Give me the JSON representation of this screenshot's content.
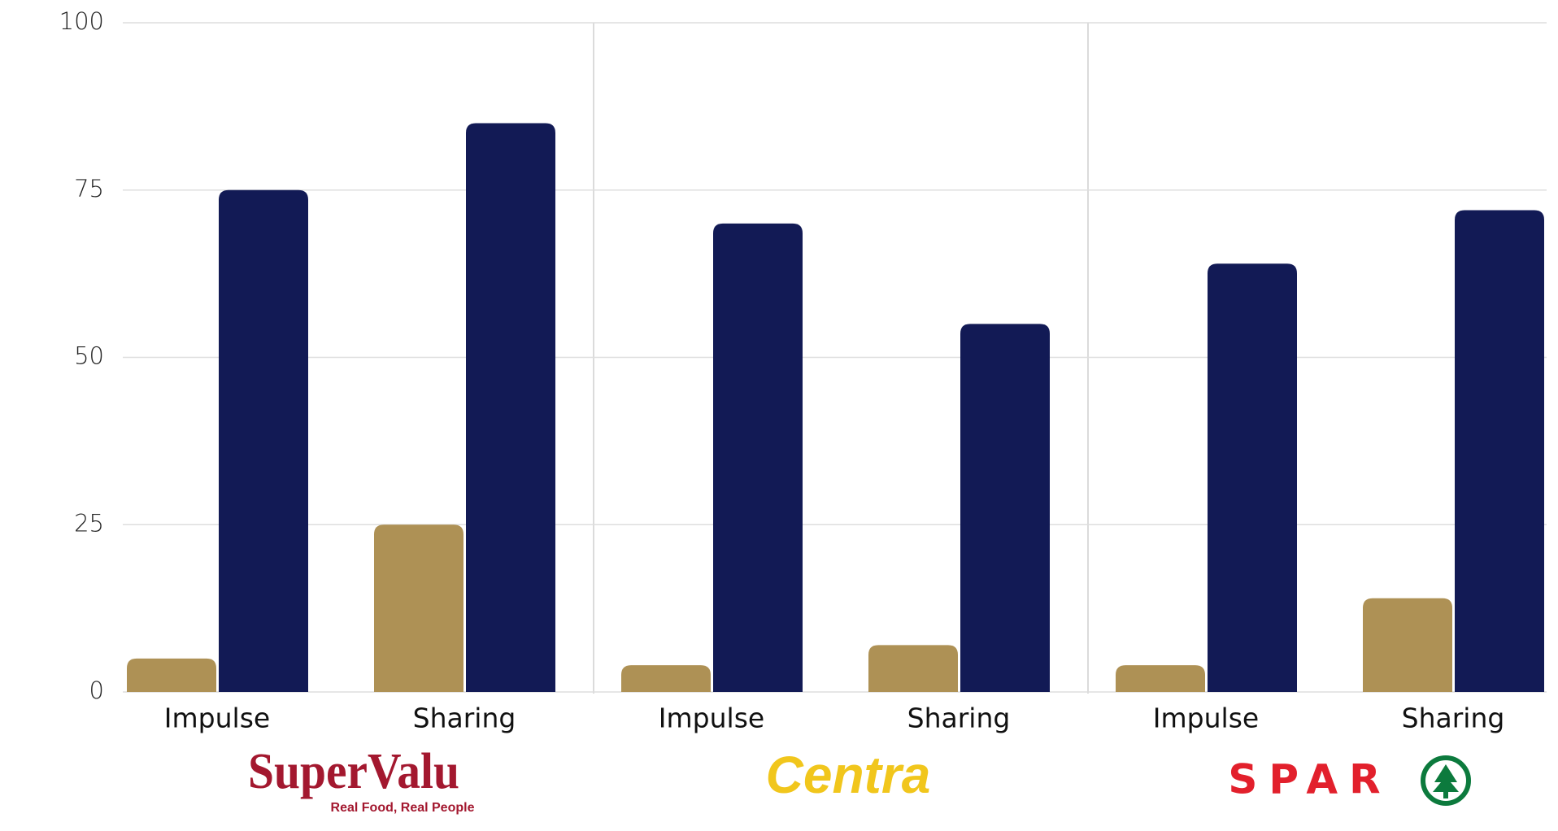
{
  "chart_data": {
    "type": "bar",
    "categories": [
      "Impulse",
      "Sharing",
      "Impulse",
      "Sharing",
      "Impulse",
      "Sharing"
    ],
    "groups": [
      {
        "label": "SuperValu",
        "tagline": "Real Food, Real People",
        "color": "#a3182f"
      },
      {
        "label": "Centra",
        "color": "#f1c61c"
      },
      {
        "label": "SPAR",
        "color": "#e2202c"
      }
    ],
    "series": [
      {
        "color": "#ae9155",
        "values": [
          5,
          25,
          4,
          7,
          4,
          14
        ]
      },
      {
        "color": "#121a55",
        "values": [
          75,
          85,
          70,
          55,
          64,
          72
        ]
      }
    ],
    "ylim": [
      0,
      100
    ],
    "yticks": [
      0,
      25,
      50,
      75,
      100
    ],
    "grid": true
  }
}
